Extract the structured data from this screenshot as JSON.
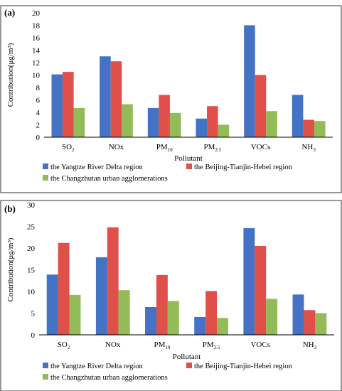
{
  "colors": {
    "series": [
      "#4472C4",
      "#E0504A",
      "#93BB57"
    ],
    "axis": "#000000"
  },
  "chart_data": [
    {
      "type": "bar",
      "panel_label": "(a)",
      "xlabel": "Pollutant",
      "ylabel": "Contribution(μg/m³)",
      "ylim": [
        0,
        20
      ],
      "yticks": [
        0,
        2,
        4,
        6,
        8,
        10,
        12,
        14,
        16,
        18,
        20
      ],
      "categories": [
        {
          "base": "SO",
          "sub": "2"
        },
        {
          "base": "NOx",
          "sub": ""
        },
        {
          "base": "PM",
          "sub": "10"
        },
        {
          "base": "PM",
          "sub": "2.5"
        },
        {
          "base": "VOCs",
          "sub": ""
        },
        {
          "base": "NH",
          "sub": "3"
        }
      ],
      "grid": false,
      "legend_position": "bottom",
      "series": [
        {
          "name": "the Yangtze River Delta region",
          "values": [
            10.1,
            13.0,
            4.7,
            3.0,
            18.0,
            6.8
          ]
        },
        {
          "name": "the Beijing-Tianjin-Hebei region",
          "values": [
            10.5,
            12.2,
            6.8,
            5.0,
            10.0,
            2.8
          ]
        },
        {
          "name": "the Changzhutan urban agglomerations",
          "values": [
            4.7,
            5.3,
            3.9,
            2.0,
            4.2,
            2.6
          ]
        }
      ]
    },
    {
      "type": "bar",
      "panel_label": "(b)",
      "xlabel": "Pollutant",
      "ylabel": "Contribution(μg/m³)",
      "ylim": [
        0,
        30
      ],
      "yticks": [
        0,
        5,
        10,
        15,
        20,
        25,
        30
      ],
      "categories": [
        {
          "base": "SO",
          "sub": "2"
        },
        {
          "base": "NOx",
          "sub": ""
        },
        {
          "base": "PM",
          "sub": "10"
        },
        {
          "base": "PM",
          "sub": "2.5"
        },
        {
          "base": "VOCs",
          "sub": ""
        },
        {
          "base": "NH",
          "sub": "3"
        }
      ],
      "grid": false,
      "legend_position": "bottom",
      "series": [
        {
          "name": "the Yangtze River Delta region",
          "values": [
            13.9,
            17.9,
            6.4,
            4.1,
            24.6,
            9.3
          ]
        },
        {
          "name": "the Beijing-Tianjin-Hebei region",
          "values": [
            21.2,
            24.8,
            13.8,
            10.1,
            20.5,
            5.7
          ]
        },
        {
          "name": "the Changzhutan urban agglomerations",
          "values": [
            9.2,
            10.3,
            7.8,
            3.9,
            8.3,
            5.0
          ]
        }
      ]
    }
  ]
}
